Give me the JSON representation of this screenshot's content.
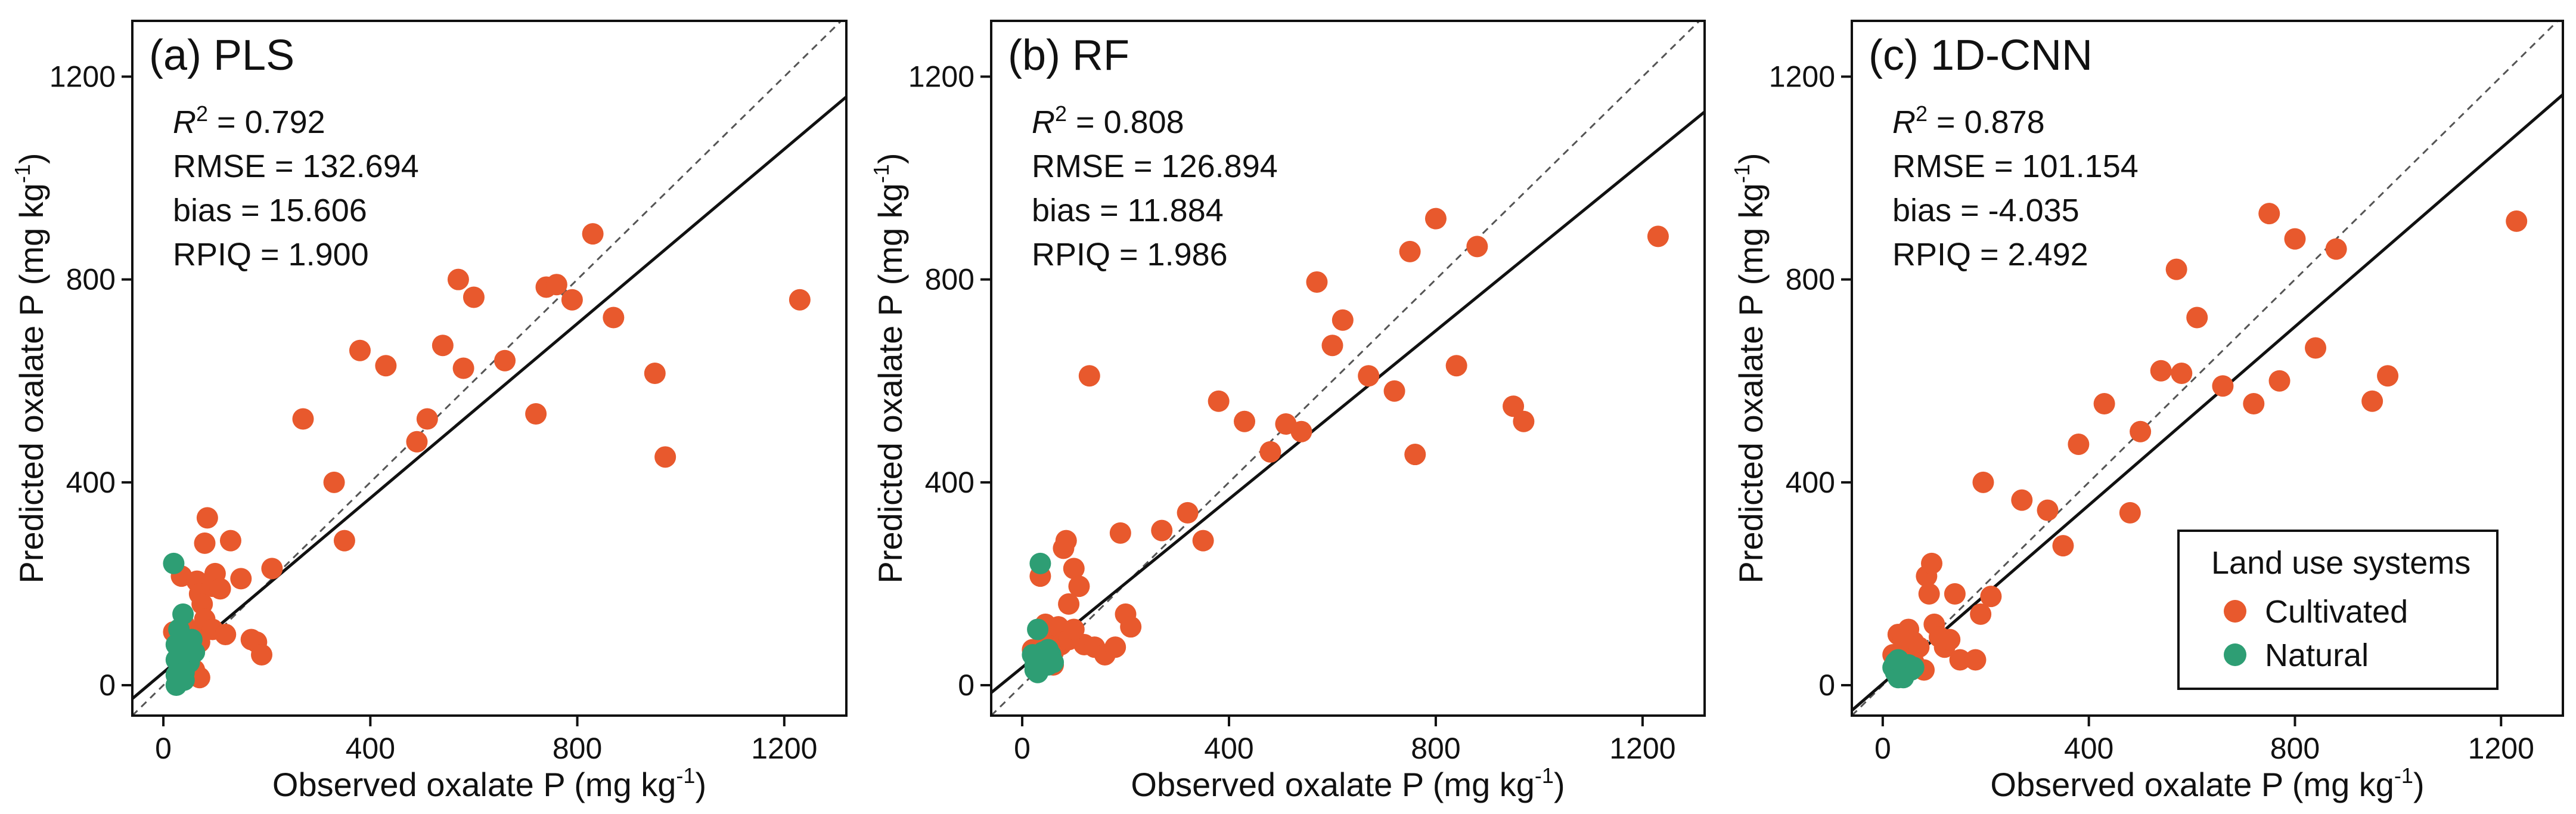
{
  "figure": {
    "colors": {
      "cultivated": "#E8592D",
      "natural": "#2E9E74",
      "axis": "#111111",
      "fit": "#111111",
      "identity": "#555555"
    }
  },
  "chart_data": [
    {
      "type": "scatter",
      "title": "(a) PLS",
      "xlabel": "Observed oxalate P (mg kg",
      "ylabel": "Predicted oxalate P (mg kg",
      "unit_sup": "-1",
      "unit_close": ")",
      "xlim": [
        -60,
        1320
      ],
      "ylim": [
        -60,
        1310
      ],
      "xticks": [
        0,
        400,
        800,
        1200
      ],
      "yticks": [
        0,
        400,
        800,
        1200
      ],
      "stats": {
        "r2_label": "R",
        "r2_sup": "2",
        "r2_value": " = 0.792",
        "rmse": "RMSE = 132.694",
        "bias": "bias = 15.606",
        "rpiq": "RPIQ = 1.900"
      },
      "fit_line": {
        "slope": 0.86,
        "intercept": 25
      },
      "series": [
        {
          "name": "Cultivated",
          "points": [
            [
              20,
              105
            ],
            [
              30,
              100
            ],
            [
              35,
              215
            ],
            [
              40,
              120
            ],
            [
              45,
              110
            ],
            [
              50,
              95
            ],
            [
              55,
              105
            ],
            [
              60,
              70
            ],
            [
              65,
              205
            ],
            [
              70,
              85
            ],
            [
              70,
              180
            ],
            [
              75,
              160
            ],
            [
              80,
              130
            ],
            [
              80,
              280
            ],
            [
              85,
              330
            ],
            [
              95,
              110
            ],
            [
              95,
              195
            ],
            [
              100,
              220
            ],
            [
              110,
              190
            ],
            [
              120,
              100
            ],
            [
              130,
              285
            ],
            [
              150,
              210
            ],
            [
              170,
              90
            ],
            [
              180,
              85
            ],
            [
              190,
              60
            ],
            [
              210,
              230
            ],
            [
              270,
              525
            ],
            [
              330,
              400
            ],
            [
              350,
              285
            ],
            [
              380,
              660
            ],
            [
              430,
              630
            ],
            [
              490,
              480
            ],
            [
              510,
              525
            ],
            [
              540,
              670
            ],
            [
              580,
              625
            ],
            [
              570,
              800
            ],
            [
              600,
              765
            ],
            [
              660,
              640
            ],
            [
              740,
              785
            ],
            [
              760,
              790
            ],
            [
              790,
              760
            ],
            [
              830,
              890
            ],
            [
              870,
              725
            ],
            [
              720,
              535
            ],
            [
              950,
              615
            ],
            [
              970,
              450
            ],
            [
              1230,
              760
            ],
            [
              60,
              30
            ],
            [
              70,
              15
            ],
            [
              50,
              50
            ]
          ]
        },
        {
          "name": "Natural",
          "points": [
            [
              20,
              240
            ],
            [
              25,
              80
            ],
            [
              25,
              50
            ],
            [
              25,
              20
            ],
            [
              25,
              0
            ],
            [
              30,
              30
            ],
            [
              30,
              110
            ],
            [
              35,
              95
            ],
            [
              35,
              60
            ],
            [
              38,
              140
            ],
            [
              40,
              10
            ],
            [
              40,
              40
            ],
            [
              45,
              75
            ],
            [
              50,
              45
            ],
            [
              55,
              90
            ],
            [
              60,
              65
            ],
            [
              30,
              70
            ],
            [
              40,
              25
            ]
          ]
        }
      ]
    },
    {
      "type": "scatter",
      "title": "(b) RF",
      "xlabel": "Observed oxalate P (mg kg",
      "ylabel": "Predicted oxalate P (mg kg",
      "unit_sup": "-1",
      "unit_close": ")",
      "xlim": [
        -60,
        1320
      ],
      "ylim": [
        -60,
        1310
      ],
      "xticks": [
        0,
        400,
        800,
        1200
      ],
      "yticks": [
        0,
        400,
        800,
        1200
      ],
      "stats": {
        "r2_label": "R",
        "r2_sup": "2",
        "r2_value": " = 0.808",
        "rmse": "RMSE = 126.894",
        "bias": "bias = 11.884",
        "rpiq": "RPIQ = 1.986"
      },
      "fit_line": {
        "slope": 0.83,
        "intercept": 35
      },
      "series": [
        {
          "name": "Cultivated",
          "points": [
            [
              20,
              70
            ],
            [
              30,
              60
            ],
            [
              35,
              215
            ],
            [
              40,
              110
            ],
            [
              45,
              120
            ],
            [
              50,
              90
            ],
            [
              55,
              70
            ],
            [
              60,
              65
            ],
            [
              70,
              115
            ],
            [
              75,
              80
            ],
            [
              80,
              270
            ],
            [
              85,
              285
            ],
            [
              90,
              160
            ],
            [
              100,
              230
            ],
            [
              110,
              195
            ],
            [
              120,
              80
            ],
            [
              130,
              610
            ],
            [
              140,
              75
            ],
            [
              160,
              60
            ],
            [
              180,
              75
            ],
            [
              190,
              300
            ],
            [
              200,
              140
            ],
            [
              210,
              115
            ],
            [
              270,
              305
            ],
            [
              320,
              340
            ],
            [
              350,
              285
            ],
            [
              380,
              560
            ],
            [
              430,
              520
            ],
            [
              480,
              460
            ],
            [
              510,
              515
            ],
            [
              540,
              500
            ],
            [
              570,
              795
            ],
            [
              600,
              670
            ],
            [
              620,
              720
            ],
            [
              670,
              610
            ],
            [
              720,
              580
            ],
            [
              750,
              855
            ],
            [
              760,
              455
            ],
            [
              800,
              920
            ],
            [
              840,
              630
            ],
            [
              880,
              865
            ],
            [
              950,
              550
            ],
            [
              970,
              520
            ],
            [
              1230,
              885
            ],
            [
              60,
              40
            ],
            [
              90,
              90
            ],
            [
              100,
              110
            ]
          ]
        },
        {
          "name": "Natural",
          "points": [
            [
              20,
              60
            ],
            [
              25,
              40
            ],
            [
              25,
              30
            ],
            [
              30,
              50
            ],
            [
              30,
              110
            ],
            [
              35,
              240
            ],
            [
              35,
              35
            ],
            [
              40,
              45
            ],
            [
              45,
              55
            ],
            [
              50,
              40
            ],
            [
              55,
              60
            ],
            [
              60,
              45
            ],
            [
              30,
              25
            ],
            [
              40,
              65
            ],
            [
              50,
              70
            ]
          ]
        }
      ]
    },
    {
      "type": "scatter",
      "title": "(c) 1D-CNN",
      "xlabel": "Observed oxalate P (mg kg",
      "ylabel": "Predicted oxalate P (mg kg",
      "unit_sup": "-1",
      "unit_close": ")",
      "xlim": [
        -60,
        1320
      ],
      "ylim": [
        -60,
        1310
      ],
      "xticks": [
        0,
        400,
        800,
        1200
      ],
      "yticks": [
        0,
        400,
        800,
        1200
      ],
      "stats": {
        "r2_label": "R",
        "r2_sup": "2",
        "r2_value": " = 0.878",
        "rmse": "RMSE = 101.154",
        "bias": "bias = -4.035",
        "rpiq": "RPIQ = 2.492"
      },
      "fit_line": {
        "slope": 0.88,
        "intercept": 3
      },
      "series": [
        {
          "name": "Cultivated",
          "points": [
            [
              20,
              60
            ],
            [
              30,
              100
            ],
            [
              40,
              70
            ],
            [
              50,
              110
            ],
            [
              60,
              85
            ],
            [
              70,
              75
            ],
            [
              80,
              30
            ],
            [
              85,
              215
            ],
            [
              90,
              180
            ],
            [
              95,
              240
            ],
            [
              100,
              120
            ],
            [
              110,
              95
            ],
            [
              120,
              75
            ],
            [
              130,
              90
            ],
            [
              140,
              180
            ],
            [
              150,
              50
            ],
            [
              180,
              50
            ],
            [
              190,
              140
            ],
            [
              195,
              400
            ],
            [
              210,
              175
            ],
            [
              270,
              365
            ],
            [
              320,
              345
            ],
            [
              350,
              275
            ],
            [
              380,
              475
            ],
            [
              430,
              555
            ],
            [
              480,
              340
            ],
            [
              500,
              500
            ],
            [
              540,
              620
            ],
            [
              570,
              820
            ],
            [
              580,
              615
            ],
            [
              610,
              725
            ],
            [
              660,
              590
            ],
            [
              720,
              555
            ],
            [
              750,
              930
            ],
            [
              770,
              600
            ],
            [
              800,
              880
            ],
            [
              840,
              665
            ],
            [
              880,
              860
            ],
            [
              950,
              560
            ],
            [
              980,
              610
            ],
            [
              1230,
              915
            ],
            [
              60,
              45
            ],
            [
              40,
              90
            ]
          ]
        },
        {
          "name": "Natural",
          "points": [
            [
              20,
              35
            ],
            [
              25,
              25
            ],
            [
              25,
              45
            ],
            [
              30,
              30
            ],
            [
              30,
              15
            ],
            [
              35,
              20
            ],
            [
              35,
              40
            ],
            [
              40,
              35
            ],
            [
              45,
              25
            ],
            [
              50,
              40
            ],
            [
              55,
              30
            ],
            [
              60,
              35
            ],
            [
              40,
              15
            ],
            [
              30,
              50
            ]
          ]
        }
      ]
    }
  ],
  "legend": {
    "title": "Land use systems",
    "items": [
      {
        "label": "Cultivated",
        "series": "Cultivated"
      },
      {
        "label": "Natural",
        "series": "Natural"
      }
    ]
  }
}
